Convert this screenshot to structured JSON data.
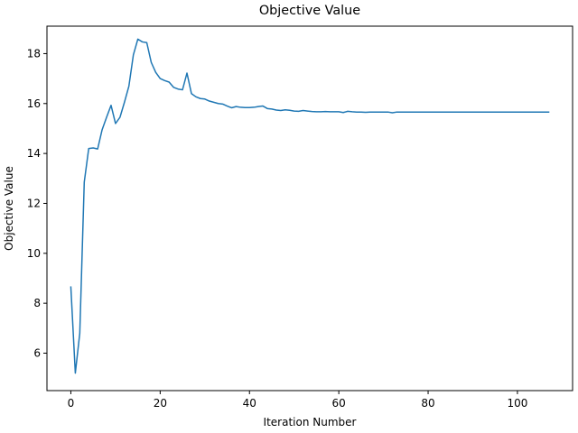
{
  "chart_data": {
    "type": "line",
    "title": "Objective Value",
    "xlabel": "Iteration Number",
    "ylabel": "Objective Value",
    "xlim": [
      -5.35,
      112.35
    ],
    "ylim": [
      4.5,
      19.1
    ],
    "xticks": [
      0,
      20,
      40,
      60,
      80,
      100
    ],
    "yticks": [
      6,
      8,
      10,
      12,
      14,
      16,
      18
    ],
    "grid": false,
    "line_color": "#1f77b4",
    "series": [
      {
        "x": [
          0,
          1,
          2,
          3,
          4,
          5,
          6,
          7,
          8,
          9,
          10,
          11,
          12,
          13,
          14,
          15,
          16,
          17,
          18,
          19,
          20,
          21,
          22,
          23,
          24,
          25,
          26,
          27,
          28,
          29,
          30,
          31,
          32,
          33,
          34,
          35,
          36,
          37,
          38,
          39,
          40,
          41,
          42,
          43,
          44,
          45,
          46,
          47,
          48,
          49,
          50,
          51,
          52,
          53,
          54,
          55,
          56,
          57,
          58,
          59,
          60,
          61,
          62,
          63,
          64,
          65,
          66,
          67,
          68,
          69,
          70,
          71,
          72,
          73,
          74,
          75,
          76,
          77,
          78,
          79,
          80,
          81,
          82,
          83,
          84,
          85,
          86,
          87,
          88,
          89,
          90,
          91,
          92,
          93,
          94,
          95,
          96,
          97,
          98,
          99,
          100,
          101,
          102,
          103,
          104,
          105,
          106,
          107
        ],
        "values": [
          8.65,
          5.2,
          6.8,
          12.85,
          14.2,
          14.22,
          14.18,
          14.95,
          15.45,
          15.93,
          15.2,
          15.45,
          16.05,
          16.7,
          17.95,
          18.58,
          18.47,
          18.44,
          17.65,
          17.25,
          17.0,
          16.92,
          16.86,
          16.65,
          16.58,
          16.55,
          17.22,
          16.4,
          16.27,
          16.2,
          16.18,
          16.1,
          16.05,
          16.0,
          15.98,
          15.9,
          15.83,
          15.88,
          15.85,
          15.84,
          15.84,
          15.85,
          15.88,
          15.9,
          15.8,
          15.78,
          15.74,
          15.72,
          15.75,
          15.73,
          15.7,
          15.69,
          15.72,
          15.7,
          15.68,
          15.67,
          15.67,
          15.68,
          15.67,
          15.67,
          15.67,
          15.64,
          15.69,
          15.67,
          15.66,
          15.66,
          15.65,
          15.66,
          15.66,
          15.66,
          15.66,
          15.66,
          15.63,
          15.66,
          15.66,
          15.66,
          15.66,
          15.66,
          15.66,
          15.66,
          15.66,
          15.66,
          15.66,
          15.66,
          15.66,
          15.66,
          15.66,
          15.66,
          15.66,
          15.66,
          15.66,
          15.66,
          15.66,
          15.66,
          15.66,
          15.66,
          15.66,
          15.66,
          15.66,
          15.66,
          15.66,
          15.66,
          15.66,
          15.66,
          15.66,
          15.66,
          15.66,
          15.66
        ]
      }
    ]
  }
}
